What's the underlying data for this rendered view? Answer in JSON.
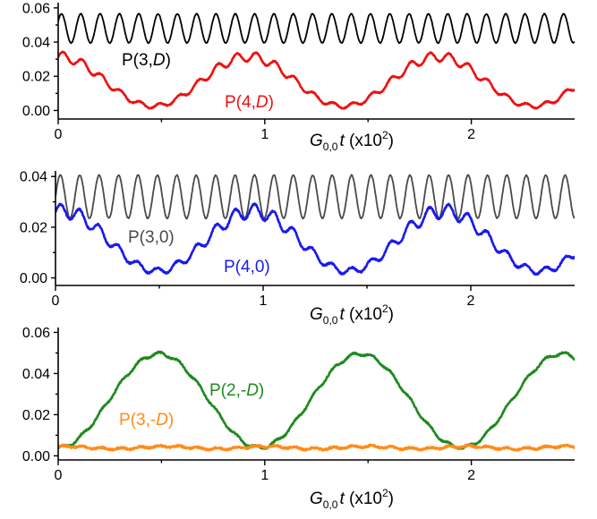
{
  "chart_data": [
    {
      "type": "line",
      "panel": "top",
      "xlim": [
        0,
        2.5
      ],
      "ylim": [
        -0.005,
        0.062
      ],
      "x_ticks": [
        0,
        1,
        2
      ],
      "x_tick_labels": [
        "0",
        "1",
        "2"
      ],
      "y_ticks": [
        0.0,
        0.02,
        0.04,
        0.06
      ],
      "y_tick_labels": [
        "0.00",
        "0.02",
        "0.04",
        "0.06"
      ],
      "xlabel": {
        "main": "G",
        "sub": "0,0",
        "var": "t",
        "unit_prefix": " (x10",
        "unit_sup": "2",
        "unit_suffix": ")"
      },
      "series": [
        {
          "name": "P(3,D)",
          "label_prefix": "P(3,",
          "label_italic": "D",
          "label_suffix": ")",
          "color": "#000000",
          "model": "oscillation",
          "mean": 0.048,
          "amplitude": 0.0085,
          "fast_period": 0.0935,
          "phase": 0.5
        },
        {
          "name": "P(4,D)",
          "label_prefix": "P(4,",
          "label_italic": "D",
          "label_suffix": ")",
          "color": "#ee1111",
          "model": "slow_fast",
          "slow_mean": 0.017,
          "slow_amplitude": 0.0145,
          "slow_period": 0.92,
          "slow_phase_x": 0.0,
          "fast_amplitude": 0.0028,
          "fast_period": 0.0935
        }
      ]
    },
    {
      "type": "line",
      "panel": "middle",
      "xlim": [
        0,
        2.5
      ],
      "ylim": [
        -0.003,
        0.0415
      ],
      "x_ticks": [
        0,
        1,
        2
      ],
      "x_tick_labels": [
        "0",
        "1",
        "2"
      ],
      "y_ticks": [
        0.0,
        0.02,
        0.04
      ],
      "y_tick_labels": [
        "0.00",
        "0.02",
        "0.04"
      ],
      "xlabel": {
        "main": "G",
        "sub": "0,0",
        "var": "t",
        "unit_prefix": " (x10",
        "unit_sup": "2",
        "unit_suffix": ")"
      },
      "series": [
        {
          "name": "P(3,0)",
          "label_prefix": "P(3,0)",
          "label_italic": "",
          "label_suffix": "",
          "color": "#4a4a4a",
          "model": "oscillation",
          "mean": 0.032,
          "amplitude": 0.0085,
          "fast_period": 0.0935,
          "phase": 0.0
        },
        {
          "name": "P(4,0)",
          "label_prefix": "P(4,0)",
          "label_italic": "",
          "label_suffix": "",
          "color": "#1a1aee",
          "model": "slow_fast",
          "slow_mean": 0.0145,
          "slow_amplitude": 0.0118,
          "slow_period": 0.92,
          "slow_phase_x": 0.03,
          "fast_amplitude": 0.0028,
          "fast_period": 0.0935
        }
      ]
    },
    {
      "type": "line",
      "panel": "bottom",
      "xlim": [
        0,
        2.5
      ],
      "ylim": [
        -0.002,
        0.0615
      ],
      "x_ticks": [
        0,
        1,
        2
      ],
      "x_tick_labels": [
        "0",
        "1",
        "2"
      ],
      "y_ticks": [
        0.0,
        0.02,
        0.04,
        0.06
      ],
      "y_tick_labels": [
        "0.00",
        "0.02",
        "0.04",
        "0.06"
      ],
      "xlabel": {
        "main": "G",
        "sub": "0,0",
        "var": "t",
        "unit_prefix": " (x10",
        "unit_sup": "2",
        "unit_suffix": ")"
      },
      "series": [
        {
          "name": "P(2,-D)",
          "label_prefix": "P(2,-",
          "label_italic": "D",
          "label_suffix": ")",
          "color": "#1e8a1e",
          "model": "slow_fast_min",
          "slow_mean": 0.0268,
          "slow_amplitude": 0.0228,
          "slow_period": 0.975,
          "slow_phase_x": -0.244,
          "fast_amplitude": 0.0008,
          "fast_period": 0.0935
        },
        {
          "name": "P(3,-D)",
          "label_prefix": "P(3,-",
          "label_italic": "D",
          "label_suffix": ")",
          "color": "#ff8c1a",
          "model": "noisy_flat",
          "mean": 0.004,
          "amplitude": 0.0008,
          "fast_period": 0.0935,
          "slow_period": 0.975
        }
      ]
    }
  ]
}
